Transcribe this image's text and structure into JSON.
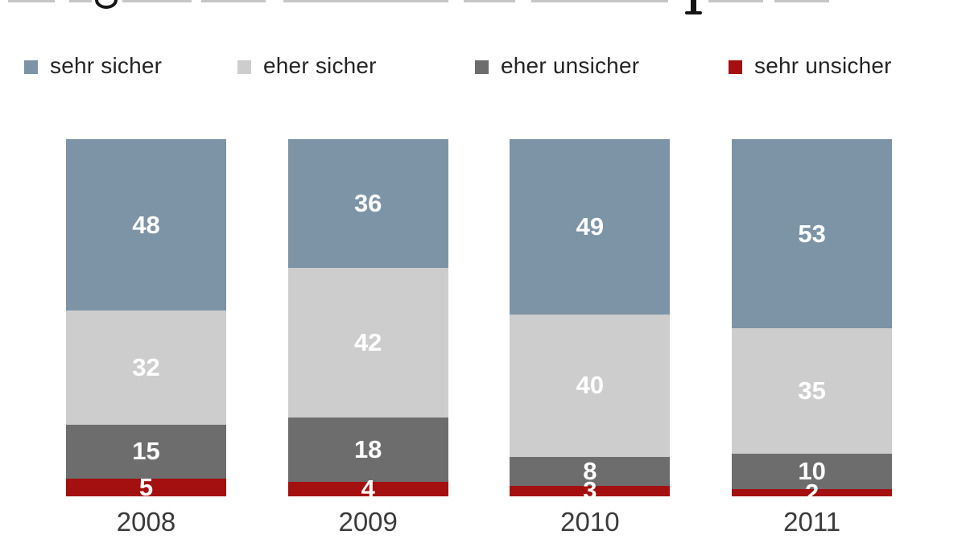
{
  "background_color": "#ffffff",
  "chart_data": {
    "type": "bar",
    "stacked": true,
    "orientation": "vertical",
    "unit": "%",
    "title": "",
    "title_note_visible_pixels": "headline cropped at top edge, only letter descenders visible",
    "categories": [
      "2008",
      "2009",
      "2010",
      "2011"
    ],
    "series": [
      {
        "name": "sehr sicher",
        "color": "#7C94A6",
        "values": [
          48,
          36,
          49,
          53
        ]
      },
      {
        "name": "eher sicher",
        "color": "#CDCDCD",
        "values": [
          32,
          42,
          40,
          35
        ]
      },
      {
        "name": "eher unsicher",
        "color": "#6D6D6D",
        "values": [
          15,
          18,
          8,
          10
        ]
      },
      {
        "name": "sehr unsicher",
        "color": "#A40F10",
        "values": [
          5,
          4,
          3,
          2
        ]
      }
    ],
    "ylim": [
      0,
      100
    ],
    "grid": false,
    "axes_visible": false,
    "legend_position": "top",
    "value_labels": {
      "position": "inside",
      "color": "#ffffff",
      "bold": true
    },
    "x_tick_labels": [
      "2008",
      "2009",
      "2010",
      "2011"
    ]
  },
  "legend": {
    "items": [
      {
        "label": "sehr sicher",
        "color": "#7C94A6"
      },
      {
        "label": "eher sicher",
        "color": "#CDCDCD"
      },
      {
        "label": "eher unsicher",
        "color": "#6D6D6D"
      },
      {
        "label": "sehr unsicher",
        "color": "#A40F10"
      }
    ]
  }
}
